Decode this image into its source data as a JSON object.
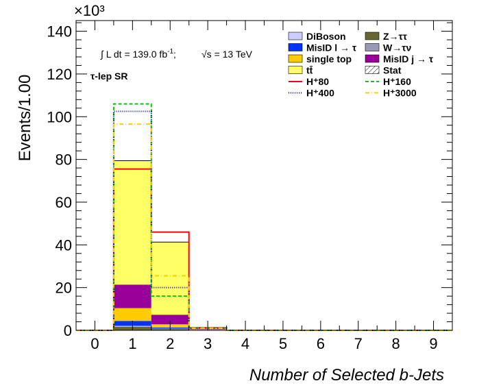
{
  "chart_data": {
    "type": "bar",
    "stacked": true,
    "xlabel": "Number of Selected b-Jets",
    "ylabel": "Events/1.00",
    "y_exponent": "×10³",
    "y_unit_scale": 1000,
    "xlim": [
      -0.5,
      9.5
    ],
    "ylim": [
      0,
      145
    ],
    "x_ticks": [
      "0",
      "1",
      "2",
      "3",
      "4",
      "5",
      "6",
      "7",
      "8",
      "9"
    ],
    "y_ticks": [
      "0",
      "20",
      "40",
      "60",
      "80",
      "100",
      "120",
      "140"
    ],
    "annotation_lumi": "∫ L dt = 139.0 fb",
    "annotation_lumi_sup": "-1",
    "annotation_energy": "√s = 13 TeV",
    "annotation_region": "τ-lep SR",
    "categories": [
      0,
      1,
      2,
      3,
      4,
      5,
      6,
      7,
      8,
      9
    ],
    "series": [
      {
        "name": "Z→ττ",
        "color": "#666633",
        "values": [
          0,
          1.6,
          0.6,
          0.1,
          0,
          0,
          0,
          0,
          0,
          0
        ]
      },
      {
        "name": "W→τν",
        "color": "#9999b3",
        "values": [
          0,
          0.2,
          0.1,
          0,
          0,
          0,
          0,
          0,
          0,
          0
        ]
      },
      {
        "name": "DiBoson",
        "color": "#ccccff",
        "values": [
          0,
          0.3,
          0.1,
          0,
          0,
          0,
          0,
          0,
          0,
          0
        ]
      },
      {
        "name": "MisID l → τ",
        "color": "#0033ff",
        "values": [
          0,
          2.3,
          0.5,
          0.1,
          0,
          0,
          0,
          0,
          0,
          0
        ]
      },
      {
        "name": "single top",
        "color": "#ffcc00",
        "values": [
          0,
          6.0,
          1.5,
          0.2,
          0,
          0,
          0,
          0,
          0,
          0
        ]
      },
      {
        "name": "MisID j → τ",
        "color": "#990099",
        "values": [
          0,
          11.0,
          4.5,
          0.2,
          0,
          0,
          0,
          0,
          0,
          0
        ]
      },
      {
        "name": "tt̄",
        "color": "#ffff66",
        "values": [
          0,
          58.0,
          34.0,
          0.7,
          0,
          0,
          0,
          0,
          0,
          0
        ]
      }
    ],
    "signals": [
      {
        "name": "H⁺80",
        "color": "#ff0000",
        "style": "solid",
        "values": [
          0,
          75.5,
          46.0,
          1.2,
          0,
          0,
          0,
          0,
          0,
          0
        ]
      },
      {
        "name": "H⁺160",
        "color": "#00cc00",
        "style": "dashed",
        "values": [
          0,
          106.0,
          16.0,
          0.9,
          0,
          0,
          0,
          0,
          0,
          0
        ]
      },
      {
        "name": "H⁺400",
        "color": "#000099",
        "style": "dotted",
        "values": [
          0,
          102.5,
          20.0,
          0.8,
          0,
          0,
          0,
          0,
          0,
          0
        ]
      },
      {
        "name": "H⁺3000",
        "color": "#ffcc00",
        "style": "dashdot",
        "values": [
          0,
          96.5,
          25.5,
          1.0,
          0,
          0,
          0,
          0,
          0,
          0
        ]
      }
    ],
    "stat_label": "Stat",
    "legend_placement": "top-right",
    "legend": [
      {
        "label": "DiBoson",
        "kind": "fill",
        "color": "#ccccff"
      },
      {
        "label": "Z→ττ",
        "kind": "fill",
        "color": "#666633"
      },
      {
        "label": "MisID l → τ",
        "kind": "fill",
        "color": "#0033ff"
      },
      {
        "label": "W→τν",
        "kind": "fill",
        "color": "#9999b3"
      },
      {
        "label": "single top",
        "kind": "fill",
        "color": "#ffcc00"
      },
      {
        "label": "MisID j → τ",
        "kind": "fill",
        "color": "#990099"
      },
      {
        "label": "tt̄",
        "kind": "fill",
        "color": "#ffff66"
      },
      {
        "label": "Stat",
        "kind": "hatch",
        "color": "#000000"
      },
      {
        "label": "H⁺80",
        "kind": "line",
        "color": "#ff0000",
        "dash": ""
      },
      {
        "label": "H⁺160",
        "kind": "line",
        "color": "#00cc00",
        "dash": "5,3"
      },
      {
        "label": "H⁺400",
        "kind": "line",
        "color": "#000099",
        "dash": "1,2"
      },
      {
        "label": "H⁺3000",
        "kind": "line",
        "color": "#ffcc00",
        "dash": "6,3,1,3"
      }
    ]
  }
}
